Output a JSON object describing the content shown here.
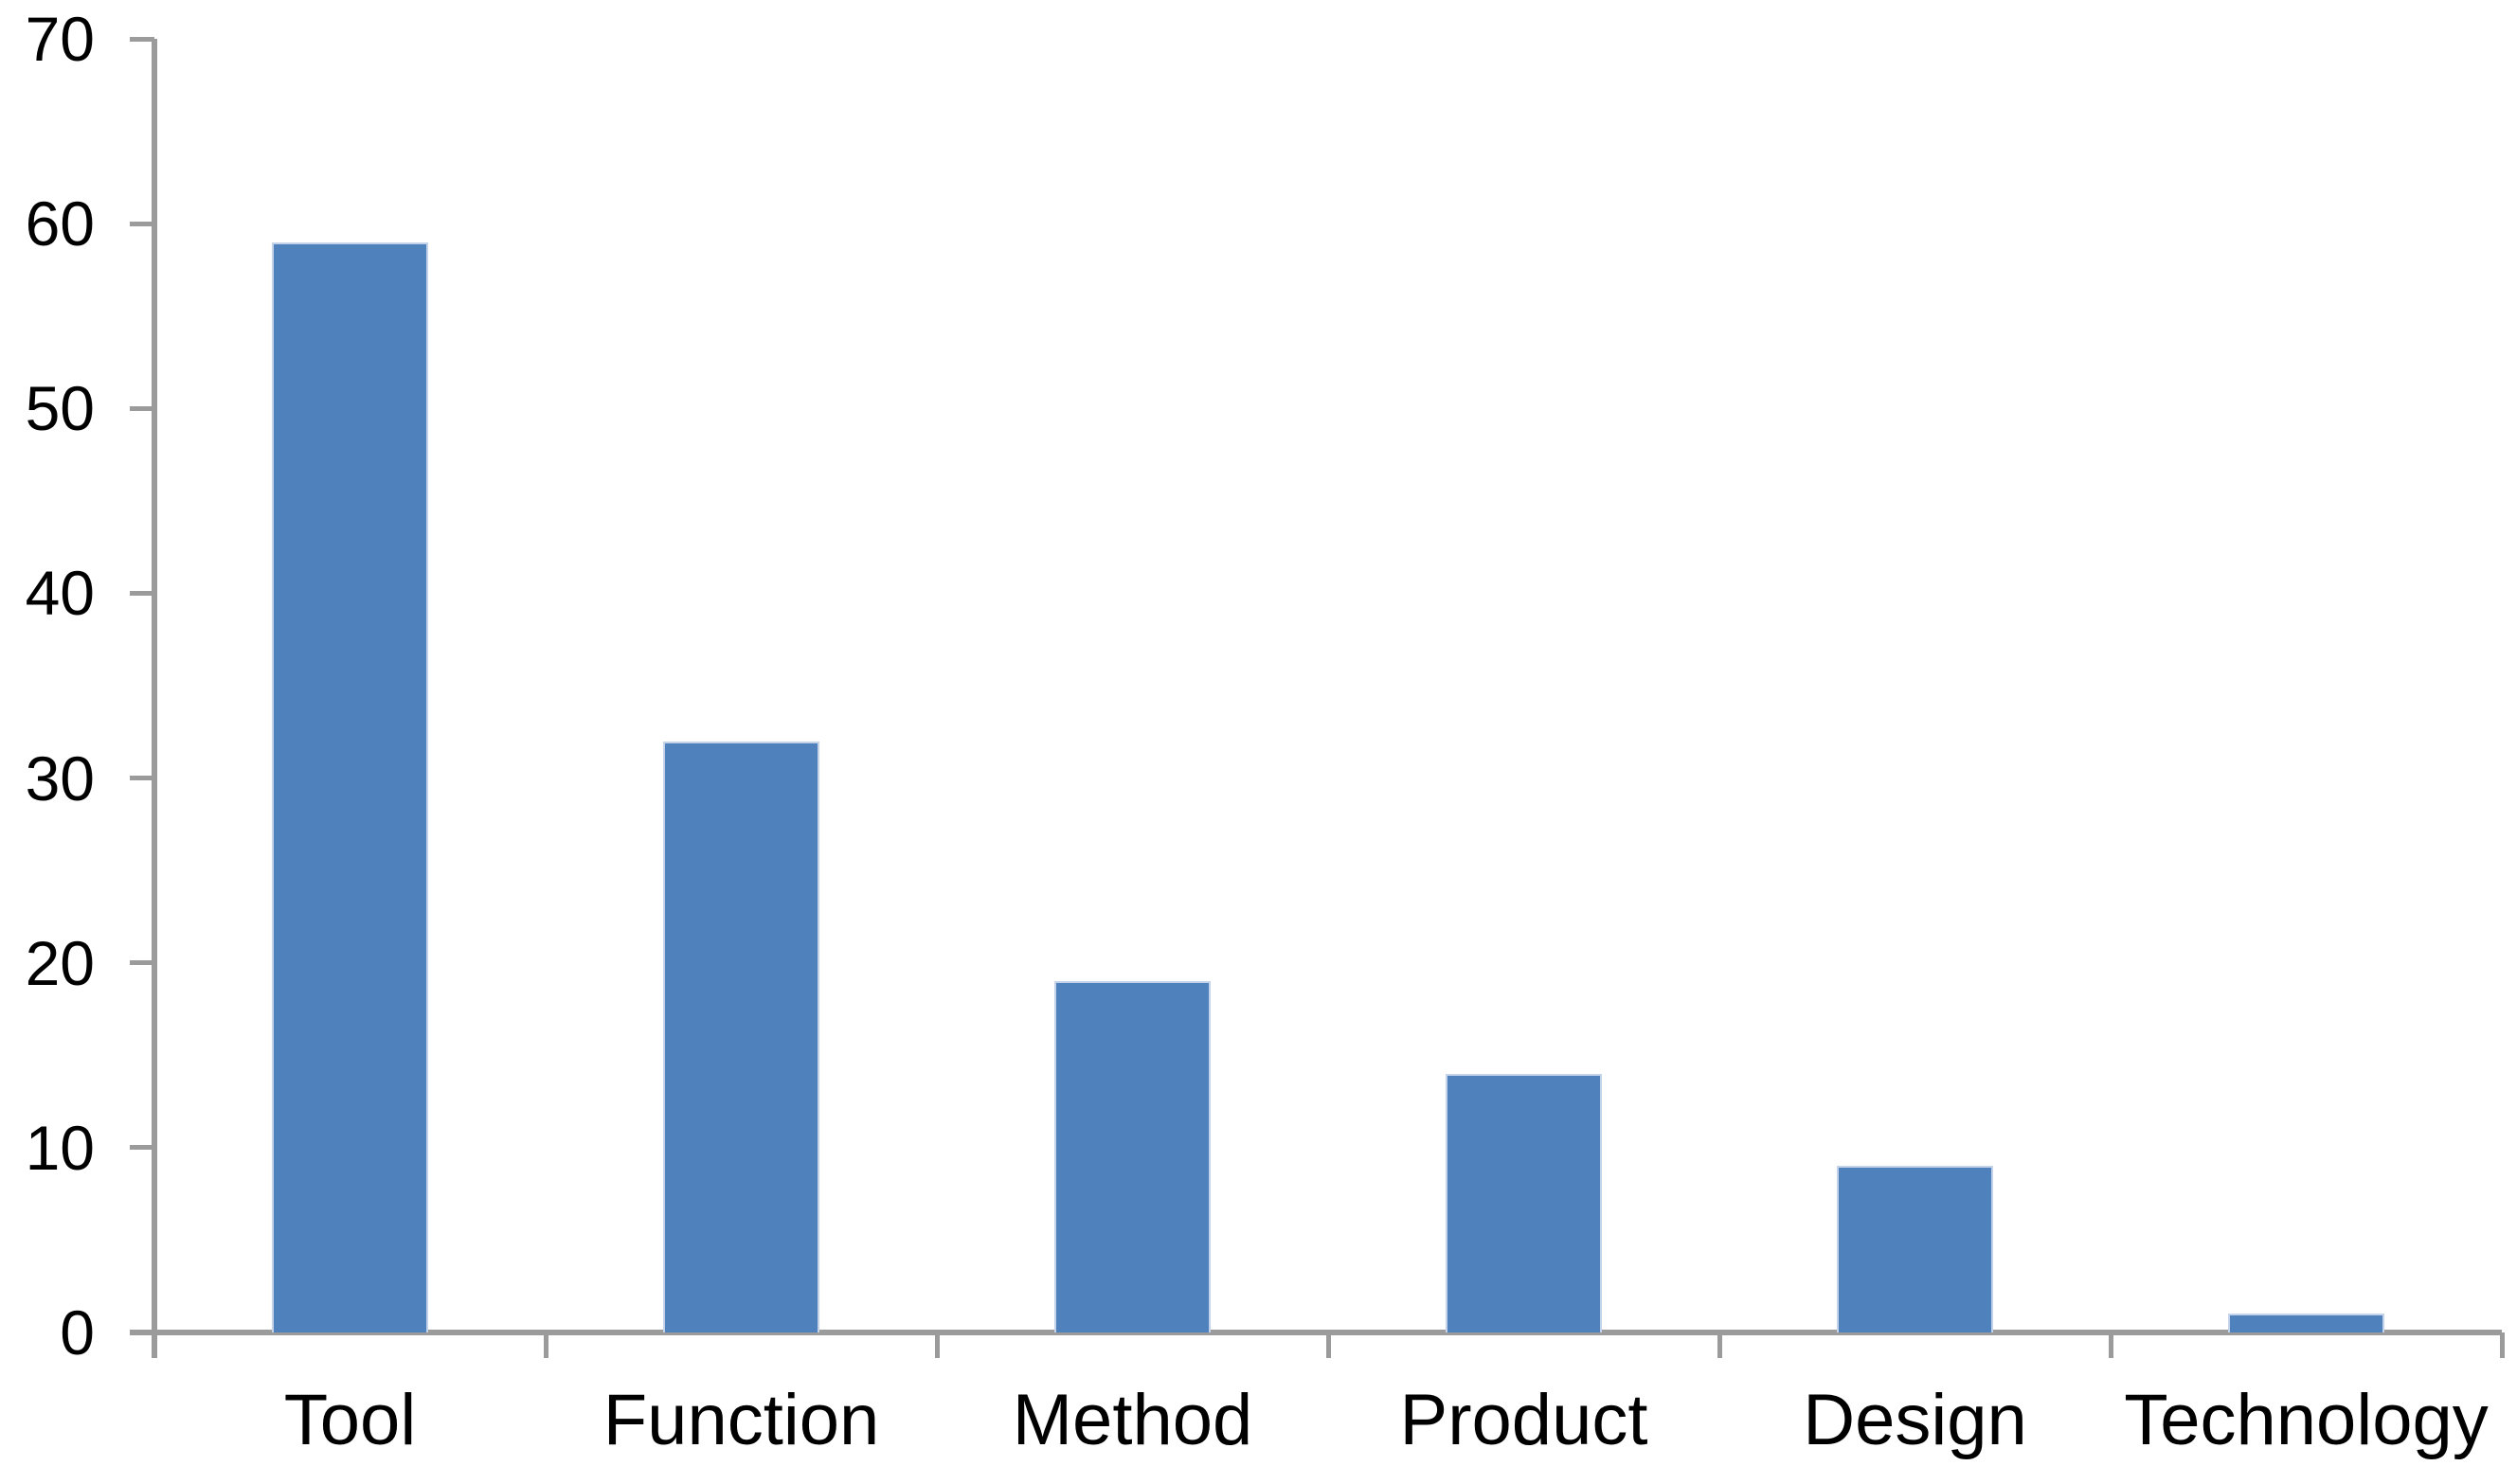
{
  "chart_data": {
    "type": "bar",
    "categories": [
      "Tool",
      "Function",
      "Method",
      "Product",
      "Design",
      "Technology"
    ],
    "values": [
      59,
      32,
      19,
      14,
      9,
      1
    ],
    "yticks": [
      0,
      10,
      20,
      30,
      40,
      50,
      60,
      70
    ],
    "ylim": [
      0,
      70
    ],
    "grid": false,
    "legend": "none",
    "colors": {
      "bar_fill": "#4F81BD",
      "bar_edge": "#C5D3EA",
      "axis": "#9B9B9B",
      "text": "#000000",
      "background": "#FFFFFF"
    }
  }
}
